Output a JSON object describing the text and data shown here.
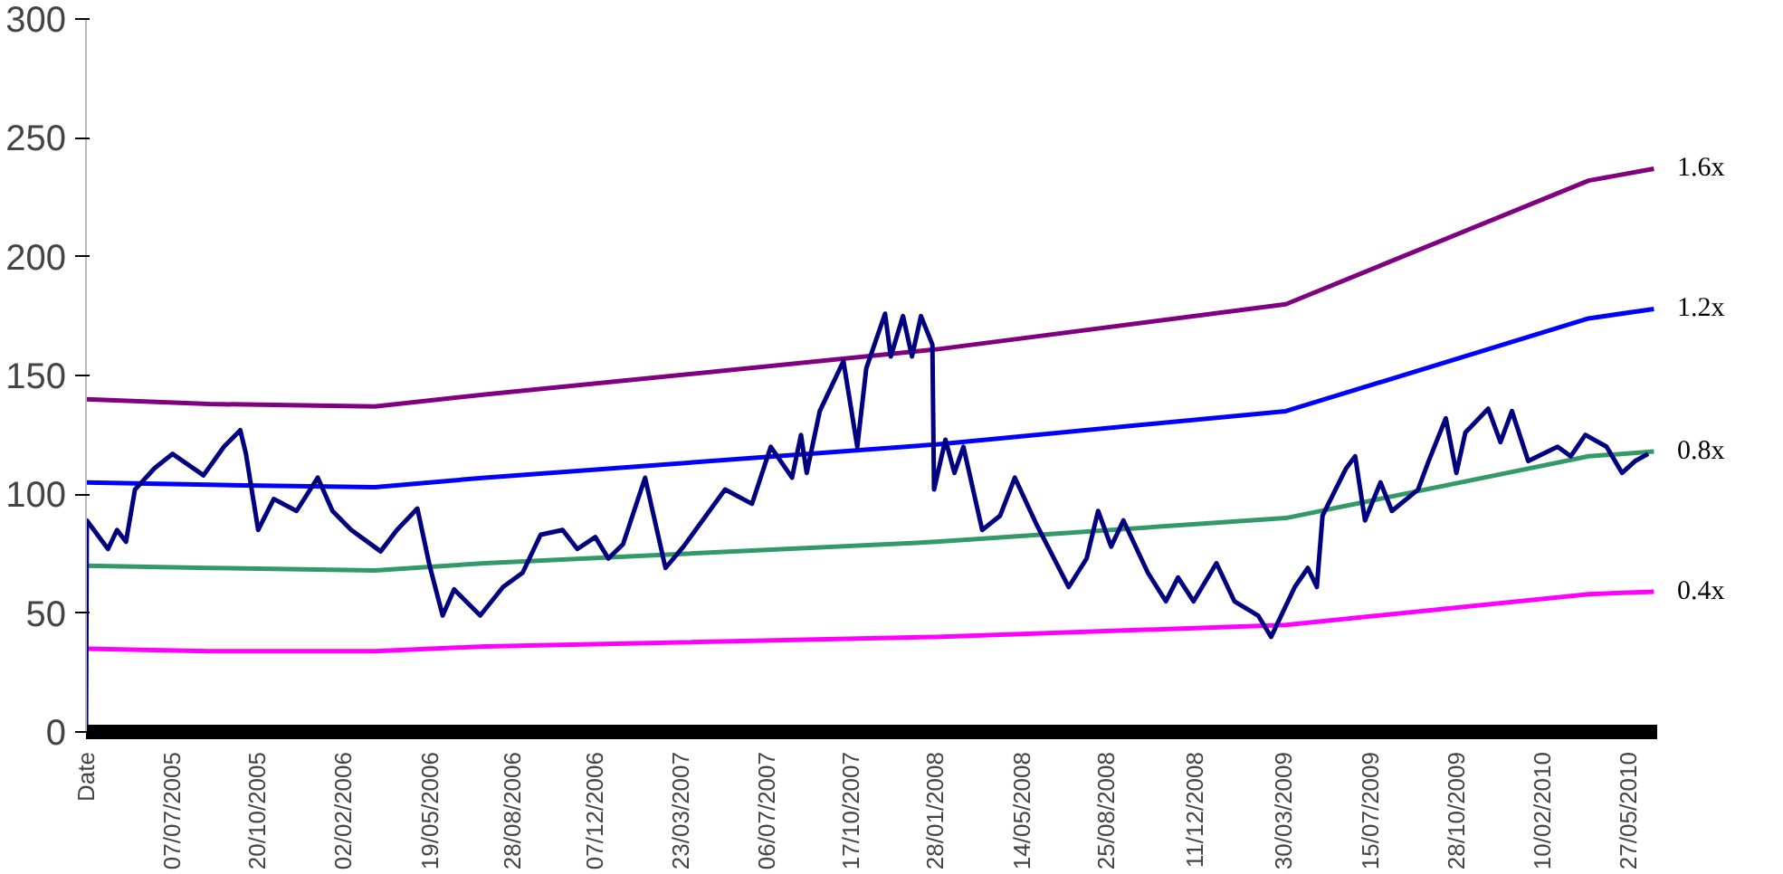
{
  "chart_data": {
    "type": "line",
    "xlim": [
      "2005-03-24",
      "2010-07-01"
    ],
    "ylim": [
      0,
      300
    ],
    "yticks": [
      0,
      50,
      100,
      150,
      200,
      250,
      300
    ],
    "xticks": [
      {
        "value": "2005-03-24",
        "label": "Date"
      },
      {
        "value": "2005-07-07",
        "label": "07/07/2005"
      },
      {
        "value": "2005-10-20",
        "label": "20/10/2005"
      },
      {
        "value": "2006-02-02",
        "label": "02/02/2006"
      },
      {
        "value": "2006-05-19",
        "label": "19/05/2006"
      },
      {
        "value": "2006-08-28",
        "label": "28/08/2006"
      },
      {
        "value": "2006-12-07",
        "label": "07/12/2006"
      },
      {
        "value": "2007-03-23",
        "label": "23/03/2007"
      },
      {
        "value": "2007-07-06",
        "label": "06/07/2007"
      },
      {
        "value": "2007-10-17",
        "label": "17/10/2007"
      },
      {
        "value": "2008-01-28",
        "label": "28/01/2008"
      },
      {
        "value": "2008-05-14",
        "label": "14/05/2008"
      },
      {
        "value": "2008-08-25",
        "label": "25/08/2008"
      },
      {
        "value": "2008-12-11",
        "label": "11/12/2008"
      },
      {
        "value": "2009-03-30",
        "label": "30/03/2009"
      },
      {
        "value": "2009-07-15",
        "label": "15/07/2009"
      },
      {
        "value": "2009-10-28",
        "label": "28/10/2009"
      },
      {
        "value": "2010-02-10",
        "label": "10/02/2010"
      },
      {
        "value": "2010-05-27",
        "label": "27/05/2010"
      }
    ],
    "grid": false,
    "legend": false,
    "marker": "none",
    "line_style": "solid",
    "series": [
      {
        "name": "1.6x",
        "color": "#800080",
        "x": [
          "2005-03-24",
          "2005-08-22",
          "2006-03-13",
          "2006-07-26",
          "2008-01-30",
          "2009-04-02",
          "2010-04-08",
          "2010-06-27"
        ],
        "values": [
          140,
          138,
          137,
          142,
          161,
          180,
          232,
          237
        ]
      },
      {
        "name": "1.2x",
        "color": "#0000ff",
        "x": [
          "2005-03-24",
          "2005-08-22",
          "2006-03-13",
          "2006-07-26",
          "2008-01-30",
          "2009-04-02",
          "2010-04-08",
          "2010-06-27"
        ],
        "values": [
          105,
          104,
          103,
          107,
          121,
          135,
          174,
          178
        ]
      },
      {
        "name": "0.8x",
        "color": "#339966",
        "x": [
          "2005-03-24",
          "2005-08-22",
          "2006-03-13",
          "2006-07-26",
          "2008-01-30",
          "2009-04-02",
          "2010-04-08",
          "2010-06-27"
        ],
        "values": [
          70,
          69,
          68,
          71,
          80,
          90,
          116,
          118
        ]
      },
      {
        "name": "0.4x",
        "color": "#ff00ff",
        "x": [
          "2005-03-24",
          "2005-08-22",
          "2006-03-13",
          "2006-07-26",
          "2008-01-30",
          "2009-04-02",
          "2010-04-08",
          "2010-06-27"
        ],
        "values": [
          35,
          34,
          34,
          36,
          40,
          45,
          58,
          59
        ]
      },
      {
        "color": "#000080",
        "x": [
          "2005-03-24",
          "2005-03-25",
          "2005-04-20",
          "2005-05-01",
          "2005-05-12",
          "2005-05-23",
          "2005-06-16",
          "2005-07-08",
          "2005-08-15",
          "2005-09-09",
          "2005-09-29",
          "2005-10-06",
          "2005-10-21",
          "2005-11-09",
          "2005-12-07",
          "2006-01-02",
          "2006-01-20",
          "2006-02-12",
          "2006-03-20",
          "2006-04-09",
          "2006-05-04",
          "2006-05-19",
          "2006-06-04",
          "2006-06-18",
          "2006-07-20",
          "2006-08-17",
          "2006-09-10",
          "2006-10-02",
          "2006-10-29",
          "2006-11-16",
          "2006-12-08",
          "2006-12-24",
          "2007-01-11",
          "2007-02-07",
          "2007-03-04",
          "2007-03-26",
          "2007-05-16",
          "2007-06-18",
          "2007-07-11",
          "2007-08-06",
          "2007-08-17",
          "2007-08-24",
          "2007-09-09",
          "2007-10-08",
          "2007-10-25",
          "2007-11-05",
          "2007-11-28",
          "2007-12-05",
          "2007-12-20",
          "2007-12-31",
          "2008-01-11",
          "2008-01-25",
          "2008-01-27",
          "2008-02-10",
          "2008-02-21",
          "2008-03-03",
          "2008-03-26",
          "2008-04-17",
          "2008-05-05",
          "2008-06-01",
          "2008-07-10",
          "2008-08-01",
          "2008-08-15",
          "2008-08-31",
          "2008-09-15",
          "2008-10-15",
          "2008-11-06",
          "2008-11-21",
          "2008-12-10",
          "2009-01-07",
          "2009-01-29",
          "2009-02-27",
          "2009-03-15",
          "2009-04-13",
          "2009-04-29",
          "2009-05-10",
          "2009-05-17",
          "2009-06-15",
          "2009-06-26",
          "2009-07-08",
          "2009-07-27",
          "2009-08-10",
          "2009-09-11",
          "2009-09-24",
          "2009-10-15",
          "2009-10-28",
          "2009-11-08",
          "2009-12-06",
          "2009-12-21",
          "2010-01-04",
          "2010-01-24",
          "2010-03-01",
          "2010-03-17",
          "2010-04-04",
          "2010-04-30",
          "2010-05-19",
          "2010-06-04",
          "2010-06-20"
        ],
        "values": [
          0,
          89,
          77,
          85,
          80,
          102,
          111,
          117,
          108,
          120,
          127,
          117,
          85,
          98,
          93,
          107,
          93,
          85,
          76,
          85,
          94,
          70,
          49,
          60,
          49,
          61,
          67,
          83,
          85,
          77,
          82,
          73,
          79,
          107,
          69,
          78,
          102,
          96,
          120,
          107,
          125,
          109,
          135,
          156,
          120,
          153,
          176,
          158,
          175,
          158,
          175,
          163,
          102,
          123,
          109,
          120,
          85,
          91,
          107,
          87,
          61,
          73,
          93,
          78,
          89,
          67,
          55,
          65,
          55,
          71,
          55,
          49,
          40,
          61,
          69,
          61,
          91,
          111,
          116,
          89,
          105,
          93,
          102,
          114,
          132,
          109,
          126,
          136,
          122,
          135,
          114,
          120,
          116,
          125,
          120,
          109,
          114,
          117
        ]
      }
    ]
  }
}
